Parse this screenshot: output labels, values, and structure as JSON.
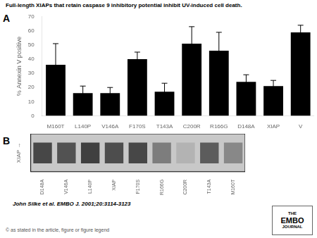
{
  "chart_data": [
    {
      "type": "bar",
      "title": "Full-length XIAPs that retain caspase 9 inhibitory potential inhibit UV-induced cell death.",
      "categories": [
        "M160T",
        "L140P",
        "V146A",
        "F170S",
        "T143A",
        "C200R",
        "R166G",
        "D148A",
        "XIAP",
        "V"
      ],
      "values": [
        36,
        16,
        16,
        40,
        17,
        51,
        46,
        24,
        21,
        59
      ],
      "errors": [
        15,
        5,
        4,
        5,
        6,
        12,
        13,
        5,
        4,
        5
      ],
      "color": "#000000",
      "ylabel": "% Annexin V positive",
      "ylim": [
        0,
        70
      ],
      "yticks": [
        0,
        10,
        20,
        30,
        40,
        50,
        60,
        70
      ],
      "grid": false,
      "annotations": [
        "A"
      ]
    },
    {
      "type": "heatmap",
      "ylabel": "XIAP →",
      "categories": [
        "D148A",
        "V146A",
        "L140P",
        "XIAP",
        "F170S",
        "R166G",
        "C200R",
        "T143A",
        "M160T"
      ],
      "values": [
        0.85,
        0.8,
        0.88,
        0.82,
        0.85,
        0.6,
        0.35,
        0.75,
        0.55
      ],
      "grid": false,
      "tick_labels": "x",
      "annotations": [
        "B",
        "John Silke et al. EMBO J. 2001;20:3114-3123",
        "© as stated in the article, figure or figure legend",
        "THE",
        "EMBO",
        "JOURNAL"
      ]
    }
  ]
}
